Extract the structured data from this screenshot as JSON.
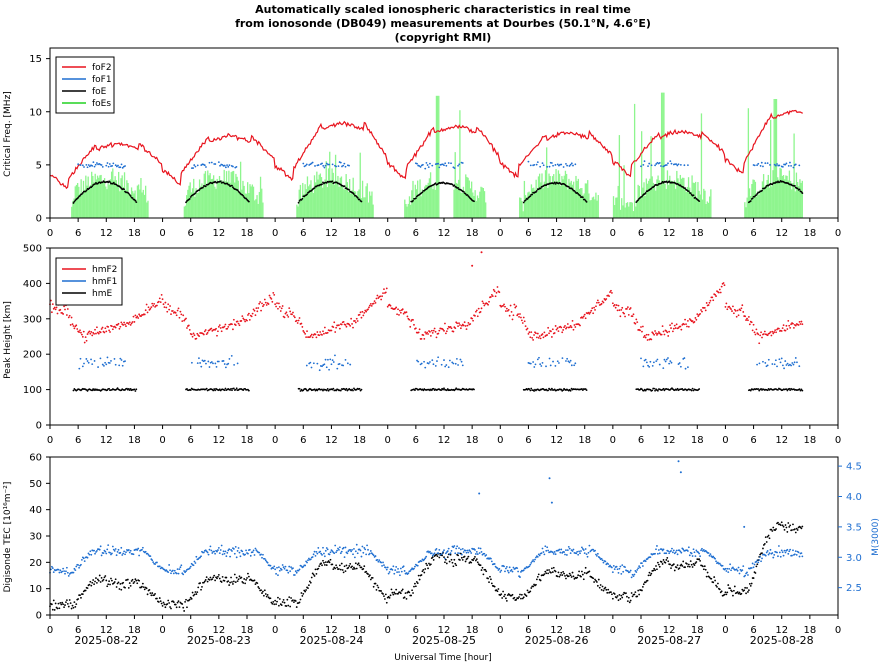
{
  "title": [
    "Automatically scaled ionospheric characteristics in real time",
    "from ionosonde (DB049) measurements at Dourbes (50.1°N, 4.6°E)",
    "(copyright RMI)"
  ],
  "colors": {
    "foF2": "#e8141e",
    "foF1": "#1f6fd1",
    "foE": "#000000",
    "foEs": "#8ef58e",
    "hmF2": "#e8141e",
    "hmF1": "#1f6fd1",
    "hmE": "#000000",
    "TEC": "#000000",
    "M3000": "#1f6fd1"
  },
  "xlabel": "Universal Time [hour]",
  "dates": [
    "2025-08-22",
    "2025-08-23",
    "2025-08-24",
    "2025-08-25",
    "2025-08-26",
    "2025-08-27",
    "2025-08-28"
  ],
  "hour_ticks": [
    "0",
    "6",
    "12",
    "18"
  ],
  "chart_data": [
    {
      "type": "line",
      "ylabel": "Critical Freq. [MHz]",
      "ylim": [
        0,
        16
      ],
      "yticks": [
        "0",
        "5",
        "10",
        "15"
      ],
      "xlim_hours": [
        0,
        168
      ],
      "legend": [
        "foF2",
        "foF1",
        "foE",
        "foEs"
      ],
      "legend_position": "top-left",
      "series": [
        {
          "name": "foF2",
          "peak_by_day": [
            7.0,
            7.7,
            8.9,
            8.6,
            8.0,
            8.1,
            10.0
          ],
          "night_by_day": [
            3.8,
            4.3,
            4.7,
            4.8,
            4.9,
            5.0,
            5.2
          ]
        },
        {
          "name": "foF1",
          "approx_value": 5.0,
          "hours": "6-16 each day"
        },
        {
          "name": "foE",
          "peak_by_day": [
            3.4,
            3.4,
            3.4,
            3.3,
            3.3,
            3.4,
            3.4
          ]
        },
        {
          "name": "foEs",
          "max_by_day": [
            6.0,
            6.5,
            6.5,
            11.5,
            6.8,
            11.8,
            11.2
          ]
        }
      ]
    },
    {
      "type": "line",
      "ylabel": "Peak Height [km]",
      "ylim": [
        0,
        500
      ],
      "yticks": [
        "0",
        "100",
        "200",
        "300",
        "400",
        "500"
      ],
      "legend": [
        "hmF2",
        "hmF1",
        "hmE"
      ],
      "legend_position": "top-left",
      "series": [
        {
          "name": "hmF2",
          "day_mean": 260,
          "night_peak_by_day": [
            360,
            370,
            390,
            390,
            380,
            400,
            370
          ]
        },
        {
          "name": "hmF1",
          "approx_value": 175
        },
        {
          "name": "hmE",
          "approx_value": 100
        }
      ]
    },
    {
      "type": "scatter",
      "ylabel": "Digisonde TEC [10¹⁶m⁻²]",
      "ylim": [
        0,
        60
      ],
      "yticks": [
        "0",
        "10",
        "20",
        "30",
        "40",
        "50",
        "60"
      ],
      "y2label": "M(3000)",
      "y2lim": [
        2.05,
        4.65
      ],
      "y2ticks": [
        "2.5",
        "3.0",
        "3.5",
        "4.0",
        "4.5"
      ],
      "series": [
        {
          "name": "TEC",
          "night_by_day": [
            4,
            4,
            5,
            8,
            7,
            7,
            9
          ],
          "peak_by_day": [
            14,
            15,
            20,
            23,
            17,
            21,
            35
          ]
        },
        {
          "name": "M(3000)",
          "day_mean": 3.1,
          "night_min": 2.7
        }
      ]
    }
  ]
}
